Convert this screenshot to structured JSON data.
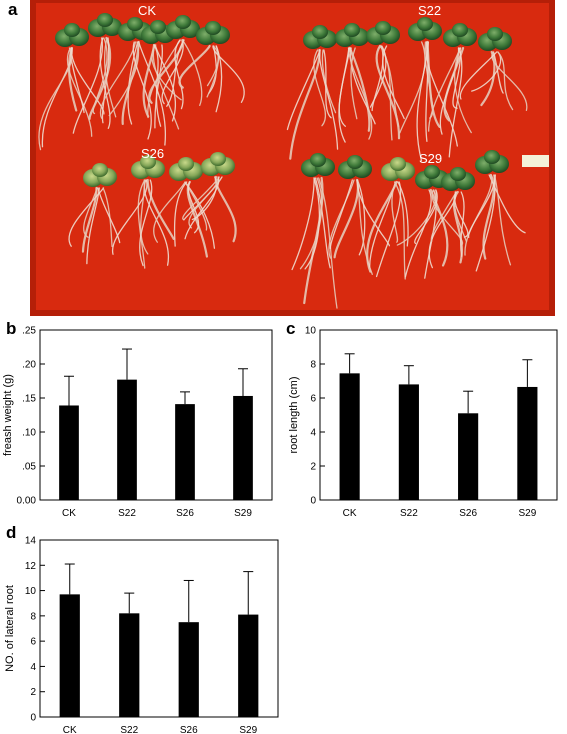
{
  "panel_letters": [
    "a",
    "b",
    "c",
    "d"
  ],
  "photo": {
    "background_color": "#d82a0f",
    "group_labels": [
      "CK",
      "S22",
      "S26",
      "S29"
    ]
  },
  "chart_data": [
    {
      "panel": "b",
      "type": "bar",
      "categories": [
        "CK",
        "S22",
        "S26",
        "S29"
      ],
      "values": [
        0.139,
        0.177,
        0.141,
        0.153
      ],
      "errors": [
        0.043,
        0.045,
        0.018,
        0.04
      ],
      "ylabel": "freash weight (g)",
      "ylim": [
        0,
        0.25
      ],
      "yticks": [
        0.0,
        0.05,
        0.1,
        0.15,
        0.2,
        0.25
      ],
      "ytick_labels": [
        "0.00",
        ".05",
        ".10",
        ".15",
        ".20",
        ".25"
      ],
      "bar_color": "#000000",
      "grid": false
    },
    {
      "panel": "c",
      "type": "bar",
      "categories": [
        "CK",
        "S22",
        "S26",
        "S29"
      ],
      "values": [
        7.45,
        6.8,
        5.1,
        6.65
      ],
      "errors": [
        1.15,
        1.1,
        1.3,
        1.6
      ],
      "ylabel": "root length (cm)",
      "ylim": [
        0,
        10
      ],
      "yticks": [
        0,
        2,
        4,
        6,
        8,
        10
      ],
      "ytick_labels": [
        "0",
        "2",
        "4",
        "6",
        "8",
        "10"
      ],
      "bar_color": "#000000",
      "grid": false
    },
    {
      "panel": "d",
      "type": "bar",
      "categories": [
        "CK",
        "S22",
        "S26",
        "S29"
      ],
      "values": [
        9.7,
        8.2,
        7.5,
        8.1
      ],
      "errors": [
        2.4,
        1.6,
        3.3,
        3.4
      ],
      "ylabel": "NO. of lateral root",
      "ylim": [
        0,
        14
      ],
      "yticks": [
        0,
        2,
        4,
        6,
        8,
        10,
        12,
        14
      ],
      "ytick_labels": [
        "0",
        "2",
        "4",
        "6",
        "8",
        "10",
        "12",
        "14"
      ],
      "bar_color": "#000000",
      "grid": false
    }
  ]
}
